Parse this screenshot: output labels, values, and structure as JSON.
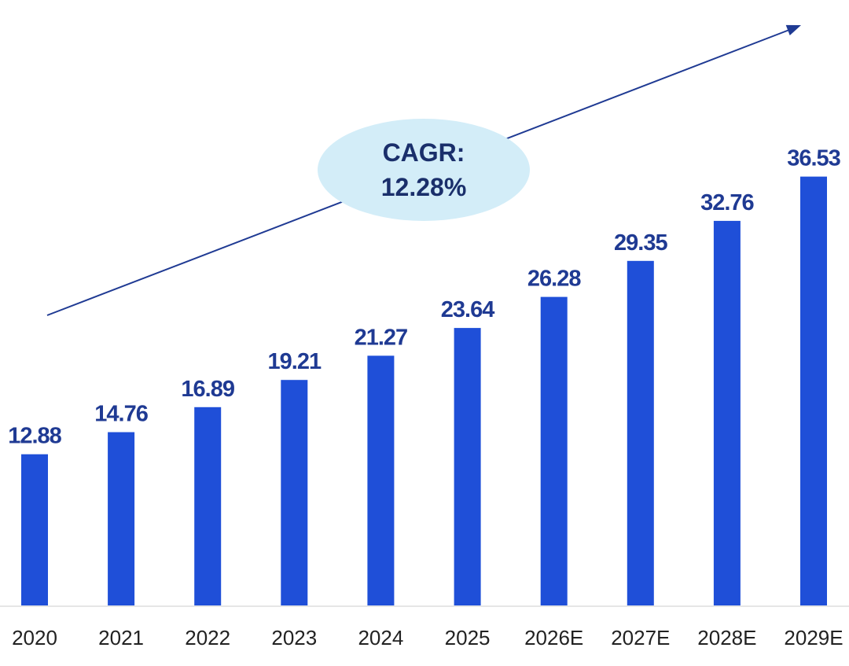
{
  "chart_data": {
    "type": "bar",
    "title": "",
    "xlabel": "",
    "ylabel": "",
    "categories": [
      "2020",
      "2021",
      "2022",
      "2023",
      "2024",
      "2025",
      "2026E",
      "2027E",
      "2028E",
      "2029E"
    ],
    "values": [
      12.88,
      14.76,
      16.89,
      19.21,
      21.27,
      23.64,
      26.28,
      29.35,
      32.76,
      36.53
    ],
    "value_labels": [
      "12.88",
      "14.76",
      "16.89",
      "19.21",
      "21.27",
      "23.64",
      "26.28",
      "29.35",
      "32.76",
      "36.53"
    ],
    "ylim": [
      0,
      40
    ],
    "grid": false,
    "legend": "none",
    "annotation": {
      "line1": "CAGR:",
      "line2": "12.28%"
    }
  },
  "colors": {
    "bar": "#1f4fd8",
    "value_text": "#1f3a93",
    "tick_text": "#222222",
    "arrow": "#1f3a93",
    "bubble_fill": "#d3edf8",
    "bubble_text": "#1a2f6b",
    "axis": "#dddddd"
  }
}
